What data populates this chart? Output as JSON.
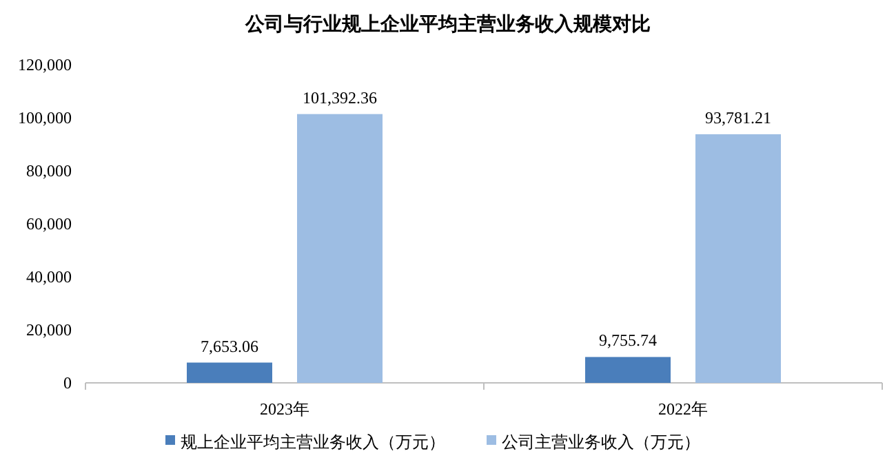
{
  "chart_data": {
    "type": "bar",
    "title": "公司与行业规上企业平均主营业务收入规模对比",
    "categories": [
      "2023年",
      "2022年"
    ],
    "series": [
      {
        "name": "规上企业平均主营业务收入（万元）",
        "color": "#4a7ebb",
        "values": [
          7653.06,
          9755.74
        ],
        "value_labels": [
          "7,653.06",
          "9,755.74"
        ]
      },
      {
        "name": "公司主营业务收入（万元）",
        "color": "#9dbde3",
        "values": [
          101392.36,
          93781.21
        ],
        "value_labels": [
          "101,392.36",
          "93,781.21"
        ]
      }
    ],
    "ylim": [
      0,
      120000
    ],
    "yticks": [
      {
        "value": 0,
        "label": "0"
      },
      {
        "value": 20000,
        "label": "20,000"
      },
      {
        "value": 40000,
        "label": "40,000"
      },
      {
        "value": 60000,
        "label": "60,000"
      },
      {
        "value": 80000,
        "label": "80,000"
      },
      {
        "value": 100000,
        "label": "100,000"
      },
      {
        "value": 120000,
        "label": "120,000"
      }
    ],
    "legend": "bottom"
  }
}
